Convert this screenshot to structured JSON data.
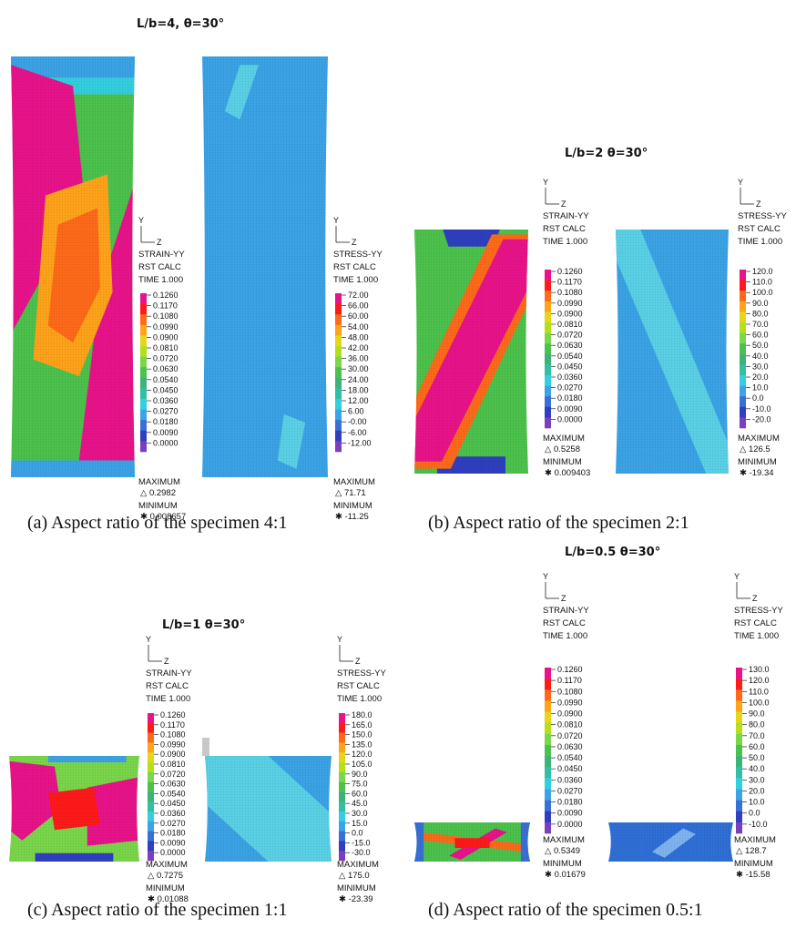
{
  "panels": [
    {
      "title": "L/b=4,  θ=30°",
      "caption": "(a)  Aspect ratio of the specimen 4:1",
      "plots": [
        {
          "axis_y": "Y",
          "axis_z": "Z",
          "quantity": "STRAIN-YY",
          "calc": "RST CALC",
          "time": "TIME 1.000",
          "levels": [
            "0.1260",
            "0.1170",
            "0.1080",
            "0.0990",
            "0.0900",
            "0.0810",
            "0.0720",
            "0.0630",
            "0.0540",
            "0.0450",
            "0.0360",
            "0.0270",
            "0.0180",
            "0.0090",
            "0.0000"
          ],
          "max_label": "MAXIMUM",
          "max_value": "△ 0.2982",
          "min_label": "MINIMUM",
          "min_value": "✱ 0.008657"
        },
        {
          "axis_y": "Y",
          "axis_z": "Z",
          "quantity": "STRESS-YY",
          "calc": "RST CALC",
          "time": "TIME 1.000",
          "levels": [
            "72.00",
            "66.00",
            "60.00",
            "54.00",
            "48.00",
            "42.00",
            "36.00",
            "30.00",
            "24.00",
            "18.00",
            "12.00",
            "6.00",
            "-0.00",
            "-6.00",
            "-12.00"
          ],
          "max_label": "MAXIMUM",
          "max_value": "△ 71.71",
          "min_label": "MINIMUM",
          "min_value": "✱ -11.25"
        }
      ]
    },
    {
      "title": "L/b=2  θ=30°",
      "caption": "(b)  Aspect ratio of the specimen 2:1",
      "plots": [
        {
          "axis_y": "Y",
          "axis_z": "Z",
          "quantity": "STRAIN-YY",
          "calc": "RST CALC",
          "time": "TIME 1.000",
          "levels": [
            "0.1260",
            "0.1170",
            "0.1080",
            "0.0990",
            "0.0900",
            "0.0810",
            "0.0720",
            "0.0630",
            "0.0540",
            "0.0450",
            "0.0360",
            "0.0270",
            "0.0180",
            "0.0090",
            "0.0000"
          ],
          "max_label": "MAXIMUM",
          "max_value": "△ 0.5258",
          "min_label": "MINIMUM",
          "min_value": "✱ 0.009403"
        },
        {
          "axis_y": "Y",
          "axis_z": "Z",
          "quantity": "STRESS-YY",
          "calc": "RST CALC",
          "time": "TIME 1.000",
          "levels": [
            "120.0",
            "110.0",
            "100.0",
            "90.0",
            "80.0",
            "70.0",
            "60.0",
            "50.0",
            "40.0",
            "30.0",
            "20.0",
            "10.0",
            "0.0",
            "-10.0",
            "-20.0"
          ],
          "max_label": "MAXIMUM",
          "max_value": "△ 126.5",
          "min_label": "MINIMUM",
          "min_value": "✱ -19.34"
        }
      ]
    },
    {
      "title": "L/b=1  θ=30°",
      "caption": "(c)  Aspect ratio of the specimen 1:1",
      "plots": [
        {
          "axis_y": "Y",
          "axis_z": "Z",
          "quantity": "STRAIN-YY",
          "calc": "RST CALC",
          "time": "TIME 1.000",
          "levels": [
            "0.1260",
            "0.1170",
            "0.1080",
            "0.0990",
            "0.0900",
            "0.0810",
            "0.0720",
            "0.0630",
            "0.0540",
            "0.0450",
            "0.0360",
            "0.0270",
            "0.0180",
            "0.0090",
            "0.0000"
          ],
          "max_label": "MAXIMUM",
          "max_value": "△ 0.7275",
          "min_label": "MINIMUM",
          "min_value": "✱ 0.01088"
        },
        {
          "axis_y": "Y",
          "axis_z": "Z",
          "quantity": "STRESS-YY",
          "calc": "RST CALC",
          "time": "TIME 1.000",
          "levels": [
            "180.0",
            "165.0",
            "150.0",
            "135.0",
            "120.0",
            "105.0",
            "90.0",
            "75.0",
            "60.0",
            "45.0",
            "30.0",
            "15.0",
            "0.0",
            "-15.0",
            "-30.0"
          ],
          "max_label": "MAXIMUM",
          "max_value": "△ 175.0",
          "min_label": "MINIMUM",
          "min_value": "✱ -23.39"
        }
      ]
    },
    {
      "title": "L/b=0.5  θ=30°",
      "caption": "(d)  Aspect ratio of the specimen 0.5:1",
      "plots": [
        {
          "axis_y": "Y",
          "axis_z": "Z",
          "quantity": "STRAIN-YY",
          "calc": "RST CALC",
          "time": "TIME 1.000",
          "levels": [
            "0.1260",
            "0.1170",
            "0.1080",
            "0.0990",
            "0.0900",
            "0.0810",
            "0.0720",
            "0.0630",
            "0.0540",
            "0.0450",
            "0.0360",
            "0.0270",
            "0.0180",
            "0.0090",
            "0.0000"
          ],
          "max_label": "MAXIMUM",
          "max_value": "△ 0.5349",
          "min_label": "MINIMUM",
          "min_value": "✱ 0.01679"
        },
        {
          "axis_y": "Y",
          "axis_z": "Z",
          "quantity": "STRESS-YY",
          "calc": "RST CALC",
          "time": "TIME 1.000",
          "levels": [
            "130.0",
            "120.0",
            "110.0",
            "100.0",
            "90.0",
            "80.0",
            "70.0",
            "60.0",
            "50.0",
            "40.0",
            "30.0",
            "20.0",
            "10.0",
            "0.0",
            "-10.0"
          ],
          "max_label": "MAXIMUM",
          "max_value": "△ 128.7",
          "min_label": "MINIMUM",
          "min_value": "✱ -15.58"
        }
      ]
    }
  ]
}
